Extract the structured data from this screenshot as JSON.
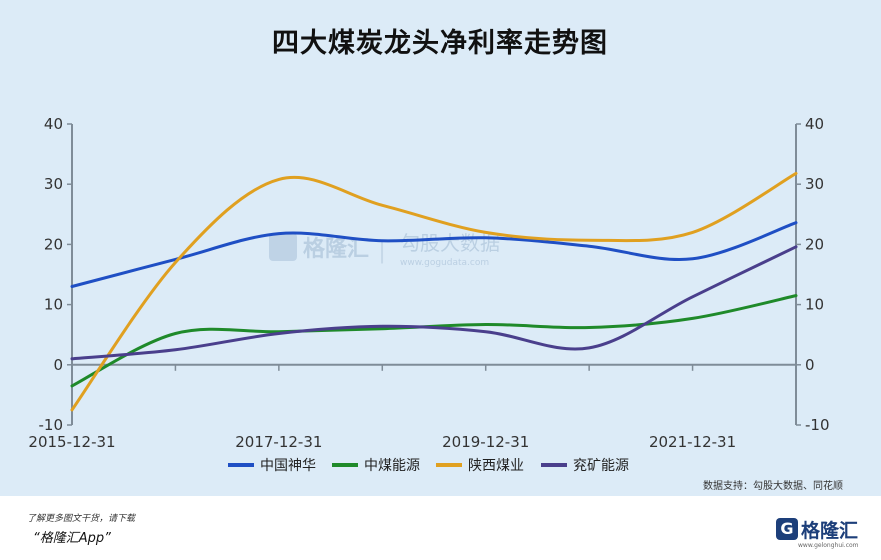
{
  "chart_data": {
    "type": "line",
    "title": "四大煤炭龙头净利率走势图",
    "ylim": [
      -10,
      40
    ],
    "y_ticks": [
      "40",
      "30",
      "20",
      "10",
      "0",
      "-10"
    ],
    "x_tick_labels": [
      "2015-12-31",
      "2017-12-31",
      "2019-12-31",
      "2021-12-31"
    ],
    "x": [
      "2015-12-31",
      "2016-12-31",
      "2017-12-31",
      "2018-12-31",
      "2019-12-31",
      "2020-12-31",
      "2021-12-31",
      "2022-12-31"
    ],
    "series": [
      {
        "name": "中国神华",
        "color": "#1f4fc4",
        "values": [
          13.0,
          17.5,
          21.8,
          20.6,
          21.1,
          19.7,
          17.6,
          23.6
        ]
      },
      {
        "name": "中煤能源",
        "color": "#1f8a2a",
        "values": [
          -3.5,
          5.2,
          5.5,
          6.0,
          6.7,
          6.2,
          7.7,
          11.5
        ]
      },
      {
        "name": "陕西煤业",
        "color": "#e0a020",
        "values": [
          -7.5,
          17.0,
          30.8,
          26.5,
          22.0,
          20.7,
          22.0,
          31.8
        ]
      },
      {
        "name": "兖矿能源",
        "color": "#4a3f8c",
        "values": [
          1.0,
          2.5,
          5.2,
          6.4,
          5.5,
          2.8,
          11.3,
          19.6
        ]
      }
    ],
    "grid": false,
    "legend": "bottom",
    "dual_y_axis": true
  },
  "watermark": {
    "brand": "格隆汇",
    "divider": "|",
    "partner": "勾股大数据",
    "partner_url": "www.gogudata.com"
  },
  "source": "数据支持：勾股大数据、同花顺",
  "footer": {
    "line1": "了解更多图文干货，请下载",
    "line2": "“格隆汇App”",
    "brand_mark": "G",
    "brand_name": "格隆汇",
    "brand_url": "www.gelonghui.com"
  },
  "colors": {
    "background": "#dcebf7",
    "axis": "#7f8c98"
  }
}
